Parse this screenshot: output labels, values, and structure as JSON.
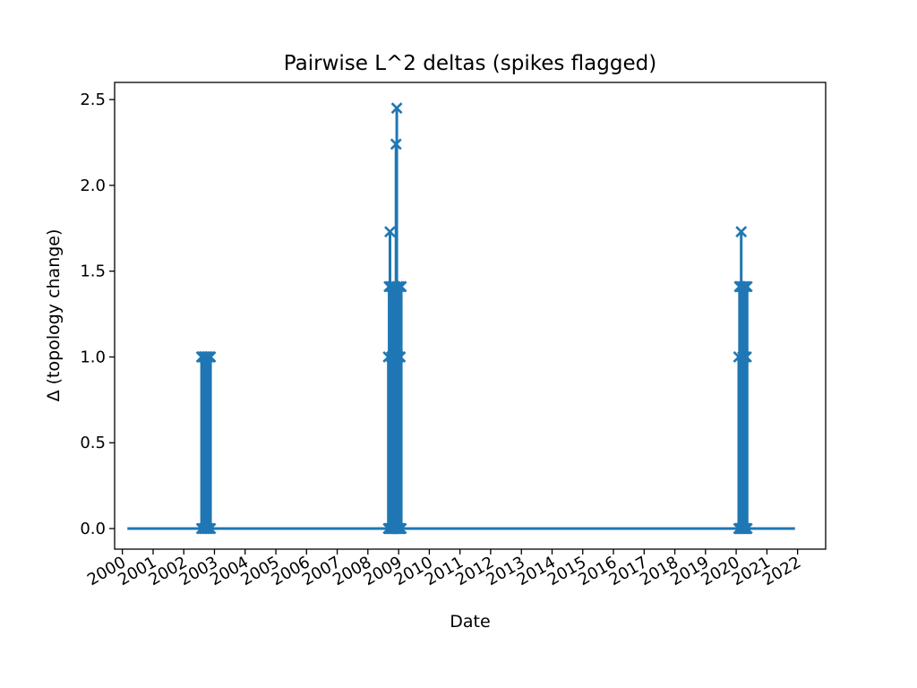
{
  "chart_data": {
    "type": "line",
    "title": "Pairwise L^2 deltas (spikes flagged)",
    "xlabel": "Date",
    "ylabel": "Δ (topology change)",
    "xlim": [
      "1999-10-01",
      "2022-12-01"
    ],
    "ylim": [
      -0.12,
      2.6
    ],
    "x_ticks": [
      "2000",
      "2001",
      "2002",
      "2003",
      "2004",
      "2005",
      "2006",
      "2007",
      "2008",
      "2009",
      "2010",
      "2011",
      "2012",
      "2013",
      "2014",
      "2015",
      "2016",
      "2017",
      "2018",
      "2019",
      "2020",
      "2021",
      "2022"
    ],
    "y_ticks": [
      0.0,
      0.5,
      1.0,
      1.5,
      2.0,
      2.5
    ],
    "y_tick_labels": [
      "0.0",
      "0.5",
      "1.0",
      "1.5",
      "2.0",
      "2.5"
    ],
    "grid": false,
    "legend": "none",
    "color": "#1f77b4",
    "baseline": {
      "x_start": "2000-03-01",
      "x_end": "2021-12-01",
      "y": 0.0
    },
    "spikes": [
      {
        "x": "2002-08-01",
        "y": 1.0
      },
      {
        "x": "2002-08-15",
        "y": 1.0
      },
      {
        "x": "2002-09-01",
        "y": 1.0
      },
      {
        "x": "2002-09-15",
        "y": 1.0
      },
      {
        "x": "2002-10-01",
        "y": 1.0
      },
      {
        "x": "2002-10-15",
        "y": 1.0
      },
      {
        "x": "2002-11-01",
        "y": 1.0
      },
      {
        "x": "2002-11-15",
        "y": 1.0
      },
      {
        "x": "2008-09-01",
        "y": 1.0
      },
      {
        "x": "2008-09-10",
        "y": 1.41
      },
      {
        "x": "2008-09-20",
        "y": 1.73
      },
      {
        "x": "2008-10-01",
        "y": 1.41
      },
      {
        "x": "2008-10-10",
        "y": 1.0
      },
      {
        "x": "2008-10-20",
        "y": 1.41
      },
      {
        "x": "2008-11-01",
        "y": 1.0
      },
      {
        "x": "2008-11-10",
        "y": 1.41
      },
      {
        "x": "2008-11-20",
        "y": 1.41
      },
      {
        "x": "2008-12-01",
        "y": 2.24
      },
      {
        "x": "2008-12-10",
        "y": 2.45
      },
      {
        "x": "2008-12-20",
        "y": 1.41
      },
      {
        "x": "2009-01-01",
        "y": 1.0
      },
      {
        "x": "2009-01-10",
        "y": 1.41
      },
      {
        "x": "2009-01-20",
        "y": 1.0
      },
      {
        "x": "2009-02-01",
        "y": 1.41
      },
      {
        "x": "2020-02-01",
        "y": 1.0
      },
      {
        "x": "2020-02-10",
        "y": 1.41
      },
      {
        "x": "2020-02-20",
        "y": 1.41
      },
      {
        "x": "2020-03-01",
        "y": 1.73
      },
      {
        "x": "2020-03-10",
        "y": 1.41
      },
      {
        "x": "2020-03-20",
        "y": 1.0
      },
      {
        "x": "2020-04-01",
        "y": 1.41
      },
      {
        "x": "2020-04-10",
        "y": 1.0
      },
      {
        "x": "2020-04-20",
        "y": 1.41
      },
      {
        "x": "2020-05-01",
        "y": 1.0
      },
      {
        "x": "2020-05-10",
        "y": 1.41
      }
    ]
  }
}
